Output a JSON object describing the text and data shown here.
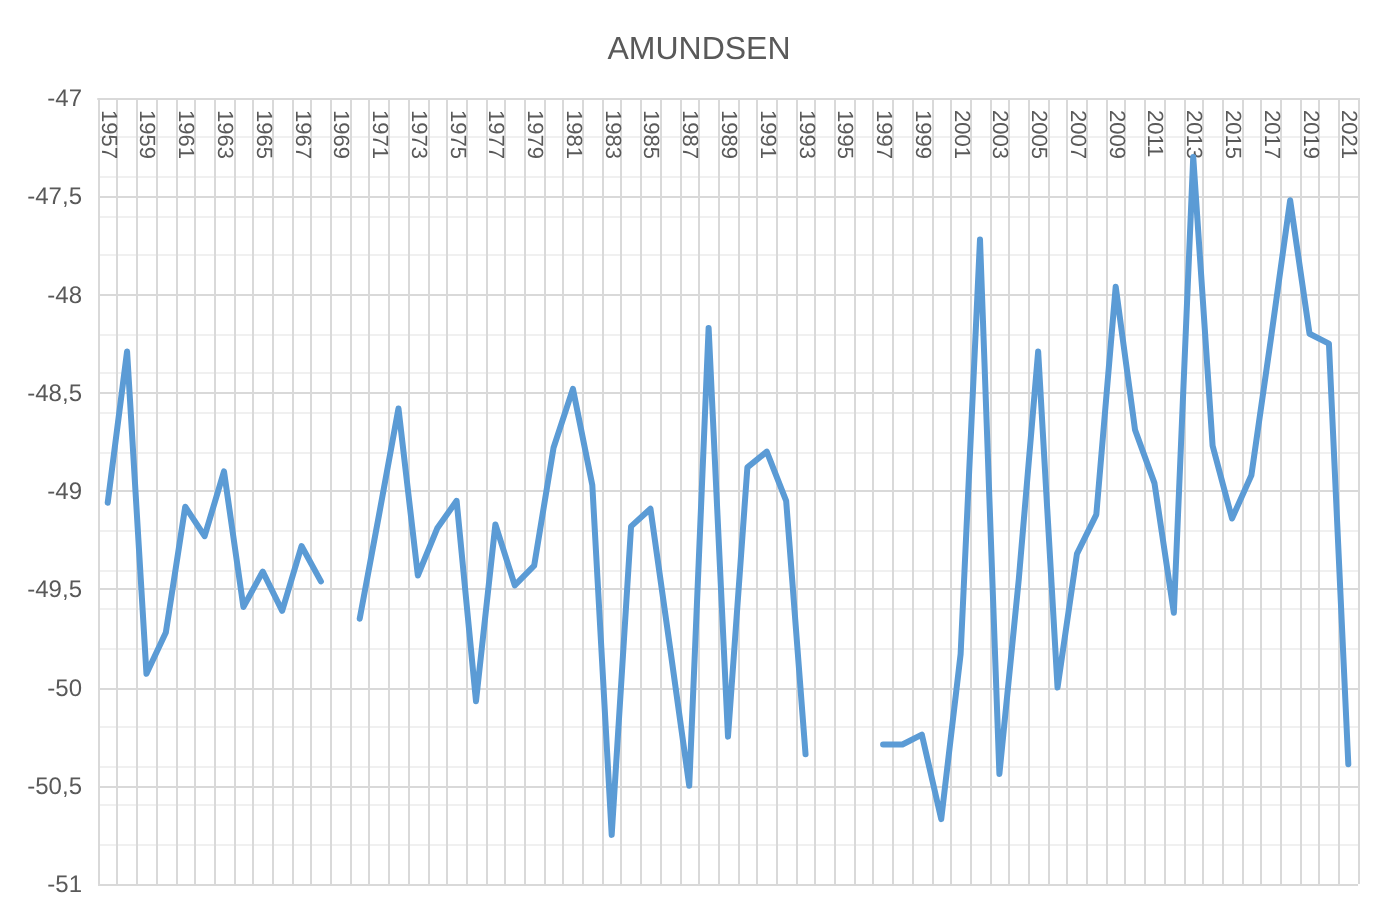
{
  "chart_data": {
    "type": "line",
    "title": "AMUNDSEN",
    "categories": [
      "1957",
      null,
      "1959",
      null,
      "1961",
      null,
      "1963",
      null,
      "1965",
      null,
      "1967",
      null,
      "1969",
      null,
      "1971",
      null,
      "1973",
      null,
      "1975",
      null,
      "1977",
      null,
      "1979",
      null,
      "1981",
      null,
      "1983",
      null,
      "1985",
      null,
      "1987",
      null,
      "1989",
      null,
      "1991",
      null,
      "1993",
      null,
      "1995",
      null,
      "1997",
      null,
      "1999",
      null,
      "2001",
      null,
      "2003",
      null,
      "2005",
      null,
      "2007",
      null,
      "2009",
      null,
      "2011",
      null,
      "2013",
      null,
      "2015",
      null,
      "2017",
      null,
      "2019",
      null,
      "2021"
    ],
    "series": [
      {
        "color": "#5b9bd5",
        "values": [
          -49.06,
          -48.29,
          -49.93,
          -49.72,
          -49.08,
          -49.23,
          -48.9,
          -49.59,
          -49.41,
          -49.61,
          -49.28,
          -49.46,
          null,
          -49.65,
          -49.12,
          -48.58,
          -49.43,
          -49.19,
          -49.05,
          -50.07,
          -49.17,
          -49.48,
          -49.38,
          -48.78,
          -48.48,
          -48.97,
          -50.75,
          -49.18,
          -49.09,
          -49.79,
          -50.5,
          -48.17,
          -50.25,
          -48.88,
          -48.8,
          -49.05,
          -50.34,
          null,
          null,
          null,
          -50.29,
          -50.29,
          -50.24,
          -50.67,
          -49.83,
          -47.72,
          -50.44,
          -49.45,
          -48.29,
          -50.0,
          -49.32,
          -49.12,
          -47.96,
          -48.69,
          -48.96,
          -49.62,
          -47.3,
          -48.77,
          -49.14,
          -48.92,
          -48.23,
          -47.52,
          -48.2,
          -48.25,
          -50.39
        ]
      }
    ],
    "ylim": [
      -51,
      -47
    ],
    "yticks": [
      -51,
      {
        "value": -50.5,
        "label": "-50,5"
      },
      -50,
      {
        "value": -49.5,
        "label": "-49,5"
      },
      -49,
      {
        "value": -48.5,
        "label": "-48,5"
      },
      -48,
      {
        "value": -47.5,
        "label": "-47,5"
      },
      -47
    ],
    "grid": true,
    "marker": "none",
    "line_style": "solid"
  }
}
